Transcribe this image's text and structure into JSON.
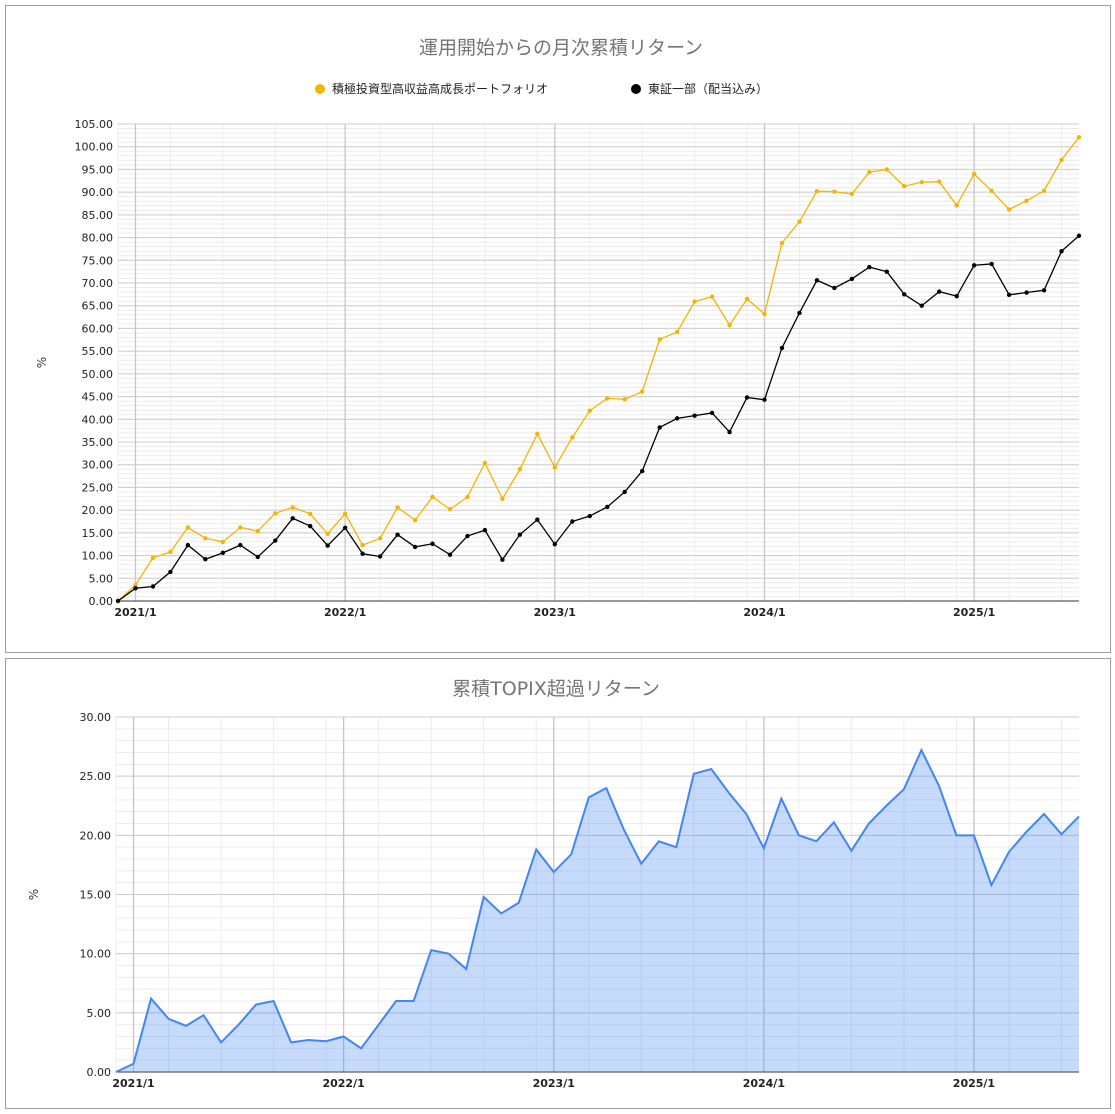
{
  "chart_data": [
    {
      "type": "line",
      "title": "運用開始からの月次累積リターン",
      "ylabel": "%",
      "ylim": [
        0,
        105
      ],
      "y_ticks": [
        "0.00",
        "5.00",
        "10.00",
        "15.00",
        "20.00",
        "25.00",
        "30.00",
        "35.00",
        "40.00",
        "45.00",
        "50.00",
        "55.00",
        "60.00",
        "65.00",
        "70.00",
        "75.00",
        "80.00",
        "85.00",
        "90.00",
        "95.00",
        "100.00",
        "105.00"
      ],
      "x_ticks": [
        "2021/1",
        "2022/1",
        "2023/1",
        "2024/1",
        "2025/1"
      ],
      "grid": true,
      "legend_position": "top",
      "series": [
        {
          "name": "積極投資型高収益高成長ポートフォリオ",
          "color": "#f4b400",
          "values": [
            0.0,
            3.5,
            9.5,
            10.8,
            16.2,
            13.8,
            13.0,
            16.2,
            15.4,
            19.3,
            20.6,
            19.2,
            14.8,
            19.2,
            12.3,
            13.8,
            20.6,
            17.8,
            22.9,
            20.2,
            22.9,
            30.4,
            22.5,
            29.0,
            36.8,
            29.4,
            36.0,
            41.9,
            44.6,
            44.4,
            46.1,
            57.6,
            59.2,
            65.9,
            67.0,
            60.7,
            66.5,
            63.2,
            78.8,
            83.5,
            90.2,
            90.1,
            89.6,
            94.4,
            95.0,
            91.3,
            92.2,
            92.3,
            87.1,
            94.0,
            90.3,
            86.2,
            88.1,
            90.3,
            97.1,
            102.1
          ]
        },
        {
          "name": "東証一部（配当込み）",
          "color": "#000000",
          "values": [
            0.0,
            2.8,
            3.2,
            6.4,
            12.3,
            9.2,
            10.6,
            12.3,
            9.7,
            13.3,
            18.2,
            16.5,
            12.2,
            16.1,
            10.4,
            9.8,
            14.6,
            11.9,
            12.6,
            10.2,
            14.3,
            15.6,
            9.1,
            14.6,
            17.9,
            12.5,
            17.5,
            18.7,
            20.7,
            24.0,
            28.6,
            38.2,
            40.2,
            40.8,
            41.4,
            37.2,
            44.8,
            44.3,
            55.7,
            63.4,
            70.6,
            68.9,
            70.9,
            73.5,
            72.5,
            67.5,
            65.0,
            68.1,
            67.1,
            73.9,
            74.2,
            67.4,
            67.9,
            68.4,
            77.0,
            80.4
          ]
        }
      ]
    },
    {
      "type": "area",
      "title": "累積TOPIX超過リターン",
      "ylabel": "%",
      "ylim": [
        0,
        30
      ],
      "y_ticks": [
        "0.00",
        "5.00",
        "10.00",
        "15.00",
        "20.00",
        "25.00",
        "30.00"
      ],
      "x_ticks": [
        "2021/1",
        "2022/1",
        "2023/1",
        "2024/1",
        "2025/1"
      ],
      "grid": true,
      "series": [
        {
          "color": "#4285f4",
          "values": [
            0.0,
            0.7,
            6.2,
            4.5,
            3.9,
            4.8,
            2.5,
            4.0,
            5.7,
            6.0,
            2.5,
            2.7,
            2.6,
            3.0,
            2.0,
            4.0,
            6.0,
            6.0,
            10.3,
            10.0,
            8.7,
            14.8,
            13.4,
            14.3,
            18.8,
            16.9,
            18.4,
            23.2,
            24.0,
            20.5,
            17.6,
            19.5,
            19.0,
            25.2,
            25.6,
            23.6,
            21.8,
            18.9,
            23.1,
            20.0,
            19.5,
            21.1,
            18.7,
            21.0,
            22.5,
            23.9,
            27.2,
            24.2,
            20.0,
            20.0,
            15.8,
            18.6,
            20.3,
            21.8,
            20.1,
            21.6
          ]
        }
      ]
    }
  ]
}
